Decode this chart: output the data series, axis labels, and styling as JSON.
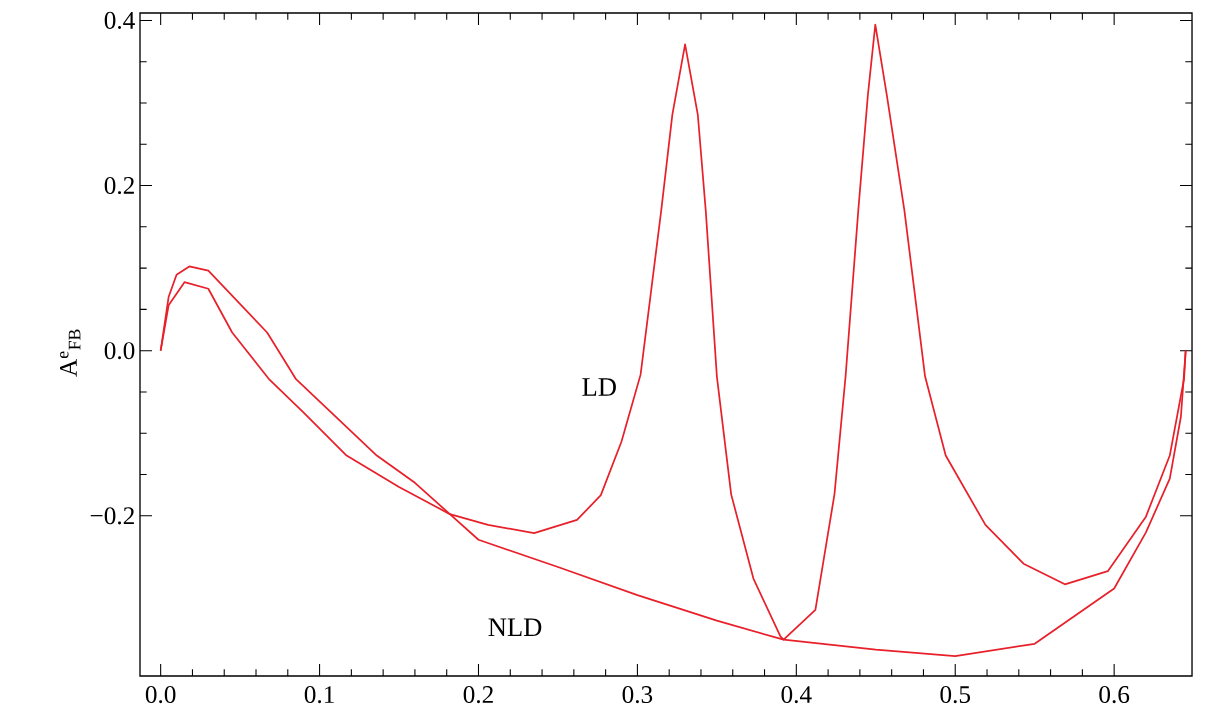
{
  "chart_data": {
    "type": "line",
    "ylabel": "A$^{e}$$_{FB}$",
    "xlim": [
      -0.013,
      0.649
    ],
    "ylim": [
      -0.394,
      0.409
    ],
    "xticks": [
      {
        "value": 0,
        "label": "0.0"
      },
      {
        "value": 0.1,
        "label": "0.1"
      },
      {
        "value": 0.2,
        "label": "0.2"
      },
      {
        "value": 0.3,
        "label": "0.3"
      },
      {
        "value": 0.4,
        "label": "0.4"
      },
      {
        "value": 0.5,
        "label": "0.5"
      },
      {
        "value": 0.6,
        "label": "0.6"
      }
    ],
    "yticks": [
      {
        "value": -0.2,
        "label": "−0.2"
      },
      {
        "value": 0,
        "label": "0.0"
      },
      {
        "value": 0.2,
        "label": "0.2"
      },
      {
        "value": 0.4,
        "label": "0.4"
      }
    ],
    "grid": false,
    "legend": false,
    "marker": "none",
    "line_style": "solid",
    "series": [
      {
        "name": "LD",
        "color": "#e8202a",
        "x": [
          0,
          0.005,
          0.015,
          0.03,
          0.045,
          0.068,
          0.09,
          0.117,
          0.15,
          0.182,
          0.206,
          0.235,
          0.262,
          0.277,
          0.29,
          0.302,
          0.315,
          0.322,
          0.33,
          0.338,
          0.343,
          0.35,
          0.359,
          0.373,
          0.39,
          0.392,
          0.412,
          0.424,
          0.431,
          0.439,
          0.445,
          0.4497,
          0.457,
          0.468,
          0.481,
          0.494,
          0.519,
          0.543,
          0.569,
          0.596,
          0.62,
          0.635,
          0.644,
          0.645
        ],
        "values": [
          0,
          0.055,
          0.083,
          0.075,
          0.022,
          -0.034,
          -0.075,
          -0.127,
          -0.165,
          -0.198,
          -0.211,
          -0.221,
          -0.205,
          -0.175,
          -0.11,
          -0.029,
          0.17,
          0.286,
          0.371,
          0.286,
          0.17,
          -0.031,
          -0.174,
          -0.276,
          -0.346,
          -0.35,
          -0.314,
          -0.174,
          -0.031,
          0.17,
          0.309,
          0.395,
          0.309,
          0.17,
          -0.031,
          -0.127,
          -0.211,
          -0.258,
          -0.283,
          -0.267,
          -0.201,
          -0.127,
          -0.034,
          0
        ]
      },
      {
        "name": "NLD",
        "color": "#e8202a",
        "x": [
          0,
          0.005,
          0.01,
          0.018,
          0.03,
          0.067,
          0.085,
          0.136,
          0.16,
          0.182,
          0.2,
          0.25,
          0.3,
          0.35,
          0.392,
          0.45,
          0.5,
          0.55,
          0.6,
          0.62,
          0.635,
          0.642,
          0.645
        ],
        "values": [
          0,
          0.065,
          0.092,
          0.102,
          0.097,
          0.022,
          -0.034,
          -0.127,
          -0.16,
          -0.198,
          -0.229,
          -0.262,
          -0.296,
          -0.327,
          -0.35,
          -0.362,
          -0.37,
          -0.355,
          -0.288,
          -0.22,
          -0.155,
          -0.08,
          0
        ]
      }
    ]
  }
}
